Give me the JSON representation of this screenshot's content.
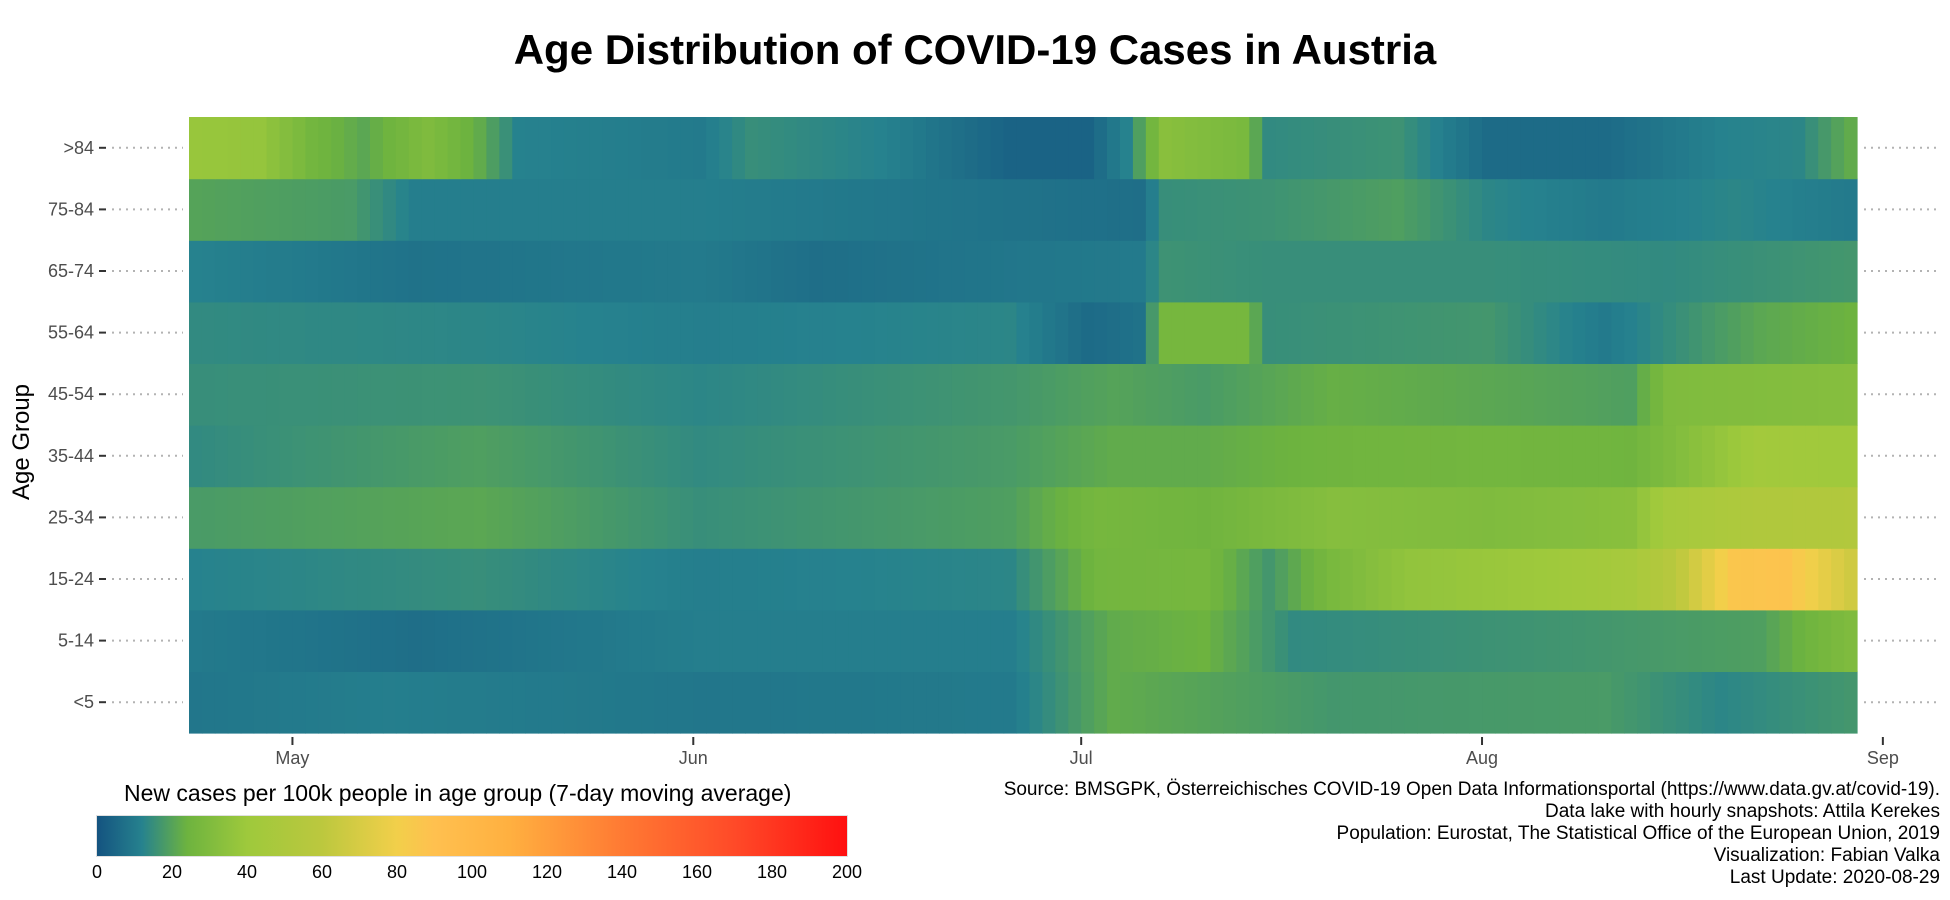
{
  "chart_data": {
    "type": "heatmap",
    "title": "Age Distribution of COVID-19 Cases in Austria",
    "ylabel": "Age Group",
    "xlabel": "",
    "y_categories": [
      "<5",
      "5-14",
      "15-24",
      "25-34",
      "35-44",
      "45-54",
      "55-64",
      "65-74",
      "75-84",
      ">84"
    ],
    "x_start_date": "2020-04-23",
    "x_end_date": "2020-08-29",
    "x_ticks": [
      {
        "label": "May",
        "date": "2020-05-01"
      },
      {
        "label": "Jun",
        "date": "2020-06-01"
      },
      {
        "label": "Jul",
        "date": "2020-07-01"
      },
      {
        "label": "Aug",
        "date": "2020-08-01"
      },
      {
        "label": "Sep",
        "date": "2020-09-01"
      }
    ],
    "series": [
      {
        "name": "<5",
        "keypoints": [
          [
            "2020-04-23",
            9
          ],
          [
            "2020-05-08",
            11
          ],
          [
            "2020-06-01",
            9
          ],
          [
            "2020-06-25",
            10
          ],
          [
            "2020-07-03",
            22
          ],
          [
            "2020-07-10",
            20
          ],
          [
            "2020-07-20",
            17
          ],
          [
            "2020-08-10",
            18
          ],
          [
            "2020-08-19",
            13
          ],
          [
            "2020-08-29",
            17
          ]
        ]
      },
      {
        "name": "5-14",
        "keypoints": [
          [
            "2020-04-23",
            10
          ],
          [
            "2020-05-10",
            7
          ],
          [
            "2020-06-01",
            11
          ],
          [
            "2020-06-25",
            11
          ],
          [
            "2020-07-03",
            22
          ],
          [
            "2020-07-10",
            24
          ],
          [
            "2020-07-17",
            14
          ],
          [
            "2020-08-10",
            17
          ],
          [
            "2020-08-22",
            19
          ],
          [
            "2020-08-29",
            30
          ]
        ]
      },
      {
        "name": "15-24",
        "keypoints": [
          [
            "2020-04-23",
            12
          ],
          [
            "2020-05-15",
            15
          ],
          [
            "2020-06-01",
            11
          ],
          [
            "2020-06-25",
            13
          ],
          [
            "2020-07-02",
            26
          ],
          [
            "2020-07-10",
            27
          ],
          [
            "2020-07-15",
            17
          ],
          [
            "2020-07-20",
            28
          ],
          [
            "2020-07-26",
            36
          ],
          [
            "2020-08-05",
            40
          ],
          [
            "2020-08-12",
            46
          ],
          [
            "2020-08-15",
            56
          ],
          [
            "2020-08-20",
            86
          ],
          [
            "2020-08-24",
            88
          ],
          [
            "2020-08-27",
            75
          ],
          [
            "2020-08-29",
            67
          ]
        ]
      },
      {
        "name": "25-34",
        "keypoints": [
          [
            "2020-04-23",
            18
          ],
          [
            "2020-05-15",
            21
          ],
          [
            "2020-06-01",
            15
          ],
          [
            "2020-06-25",
            19
          ],
          [
            "2020-07-02",
            27
          ],
          [
            "2020-07-10",
            25
          ],
          [
            "2020-07-20",
            32
          ],
          [
            "2020-08-01",
            30
          ],
          [
            "2020-08-12",
            33
          ],
          [
            "2020-08-15",
            45
          ],
          [
            "2020-08-22",
            52
          ],
          [
            "2020-08-29",
            53
          ]
        ]
      },
      {
        "name": "35-44",
        "keypoints": [
          [
            "2020-04-23",
            14
          ],
          [
            "2020-05-15",
            19
          ],
          [
            "2020-06-01",
            14
          ],
          [
            "2020-06-25",
            18
          ],
          [
            "2020-07-03",
            22
          ],
          [
            "2020-07-10",
            22
          ],
          [
            "2020-07-20",
            25
          ],
          [
            "2020-08-01",
            26
          ],
          [
            "2020-08-12",
            25
          ],
          [
            "2020-08-18",
            35
          ],
          [
            "2020-08-22",
            43
          ],
          [
            "2020-08-29",
            41
          ]
        ]
      },
      {
        "name": "45-54",
        "keypoints": [
          [
            "2020-04-23",
            15
          ],
          [
            "2020-05-15",
            16
          ],
          [
            "2020-06-01",
            13
          ],
          [
            "2020-06-25",
            17
          ],
          [
            "2020-07-03",
            20
          ],
          [
            "2020-07-10",
            18
          ],
          [
            "2020-07-20",
            23
          ],
          [
            "2020-08-01",
            21
          ],
          [
            "2020-08-12",
            19
          ],
          [
            "2020-08-15",
            30
          ],
          [
            "2020-08-22",
            31
          ],
          [
            "2020-08-29",
            32
          ]
        ]
      },
      {
        "name": "55-64",
        "keypoints": [
          [
            "2020-04-23",
            14
          ],
          [
            "2020-05-15",
            13
          ],
          [
            "2020-06-01",
            11
          ],
          [
            "2020-06-25",
            13
          ],
          [
            "2020-07-01",
            6
          ],
          [
            "2020-07-05",
            8
          ],
          [
            "2020-07-07",
            27
          ],
          [
            "2020-07-13",
            27
          ],
          [
            "2020-07-15",
            15
          ],
          [
            "2020-08-01",
            17
          ],
          [
            "2020-08-10",
            10
          ],
          [
            "2020-08-22",
            21
          ],
          [
            "2020-08-29",
            24
          ]
        ]
      },
      {
        "name": "65-74",
        "keypoints": [
          [
            "2020-04-23",
            12
          ],
          [
            "2020-05-10",
            8
          ],
          [
            "2020-06-01",
            10
          ],
          [
            "2020-06-10",
            7
          ],
          [
            "2020-06-25",
            9
          ],
          [
            "2020-07-05",
            10
          ],
          [
            "2020-07-07",
            16
          ],
          [
            "2020-07-15",
            15
          ],
          [
            "2020-08-01",
            15
          ],
          [
            "2020-08-15",
            14
          ],
          [
            "2020-08-29",
            17
          ]
        ]
      },
      {
        "name": "75-84",
        "keypoints": [
          [
            "2020-04-23",
            20
          ],
          [
            "2020-05-05",
            18
          ],
          [
            "2020-05-10",
            11
          ],
          [
            "2020-06-01",
            11
          ],
          [
            "2020-06-25",
            8
          ],
          [
            "2020-07-05",
            7
          ],
          [
            "2020-07-07",
            15
          ],
          [
            "2020-07-15",
            16
          ],
          [
            "2020-07-25",
            19
          ],
          [
            "2020-08-01",
            13
          ],
          [
            "2020-08-10",
            10
          ],
          [
            "2020-08-20",
            13
          ],
          [
            "2020-08-29",
            10
          ]
        ]
      },
      {
        "name": ">84",
        "keypoints": [
          [
            "2020-04-23",
            38
          ],
          [
            "2020-04-28",
            37
          ],
          [
            "2020-05-02",
            26
          ],
          [
            "2020-05-06",
            21
          ],
          [
            "2020-05-11",
            30
          ],
          [
            "2020-05-15",
            22
          ],
          [
            "2020-05-18",
            12
          ],
          [
            "2020-06-01",
            10
          ],
          [
            "2020-06-05",
            15
          ],
          [
            "2020-06-15",
            12
          ],
          [
            "2020-06-25",
            4
          ],
          [
            "2020-07-01",
            4
          ],
          [
            "2020-07-04",
            12
          ],
          [
            "2020-07-07",
            33
          ],
          [
            "2020-07-13",
            28
          ],
          [
            "2020-07-15",
            14
          ],
          [
            "2020-07-25",
            16
          ],
          [
            "2020-08-01",
            6
          ],
          [
            "2020-08-10",
            6
          ],
          [
            "2020-08-19",
            12
          ],
          [
            "2020-08-25",
            13
          ],
          [
            "2020-08-29",
            22
          ]
        ]
      }
    ],
    "colorbar": {
      "title": "New cases per 100k people in age group (7-day moving average)",
      "min": 0,
      "max": 200,
      "ticks": [
        "0",
        "20",
        "40",
        "60",
        "80",
        "100",
        "120",
        "140",
        "160",
        "180",
        "200"
      ],
      "stops": [
        {
          "v": 0,
          "color": "#145380"
        },
        {
          "v": 12,
          "color": "#26828e"
        },
        {
          "v": 24,
          "color": "#6db33f"
        },
        {
          "v": 40,
          "color": "#9ec93c"
        },
        {
          "v": 60,
          "color": "#bcc83e"
        },
        {
          "v": 80,
          "color": "#f2cf4a"
        },
        {
          "v": 90,
          "color": "#ffc04f"
        },
        {
          "v": 110,
          "color": "#ffb040"
        },
        {
          "v": 140,
          "color": "#ff7a33"
        },
        {
          "v": 170,
          "color": "#ff4a28"
        },
        {
          "v": 200,
          "color": "#ff1010"
        }
      ]
    },
    "grid": false,
    "legend_position": "bottom-left"
  },
  "credits": [
    "Source: BMSGPK, Österreichisches COVID-19 Open Data Informationsportal (https://www.data.gv.at/covid-19).",
    "Data lake with hourly snapshots: Attila Kerekes",
    "Population: Eurostat, The Statistical Office of the European Union, 2019",
    "Visualization: Fabian Valka",
    "Last Update: 2020-08-29"
  ]
}
